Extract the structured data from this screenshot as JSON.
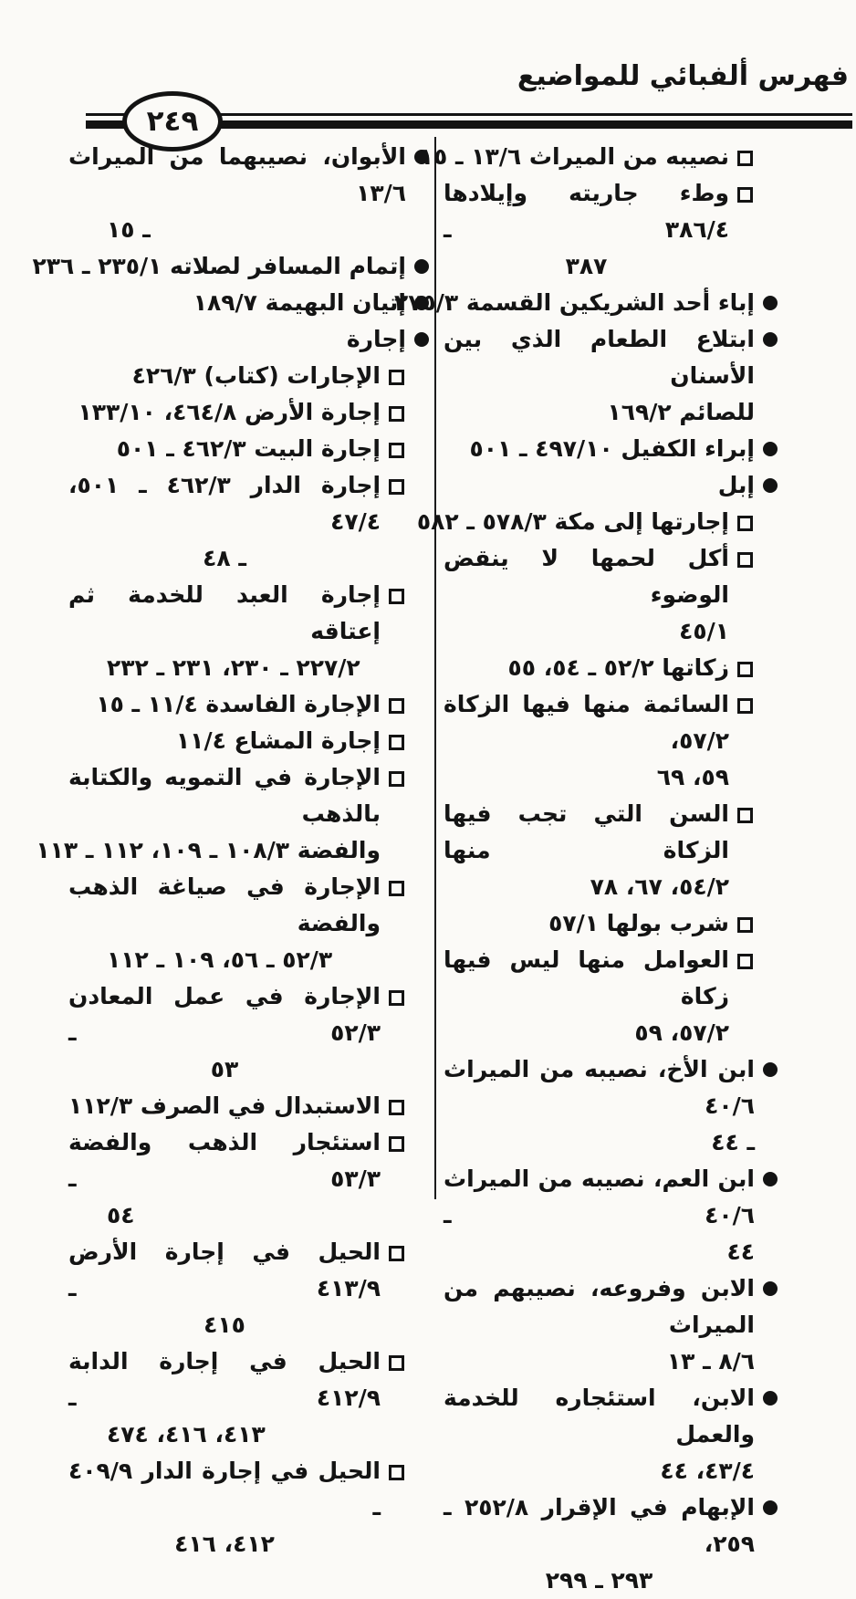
{
  "header": {
    "title": "فهرس ألفبائي للمواضيع",
    "page_number": "٢٤٩"
  },
  "colors": {
    "ink": "#131313",
    "paper": "#fbfaf7"
  },
  "markers": {
    "main": "circle-bullet-icon",
    "sub": "square-bullet-icon"
  },
  "index": {
    "right_column": {
      "entries": [
        {
          "marker": "square",
          "lines": [
            {
              "text": "نصيبه من الميراث ١٣/٦ ـ ١٥"
            }
          ]
        },
        {
          "marker": "square",
          "lines": [
            {
              "text": "وطء جاريته وإيلادها ٣٨٦/٤ ـ",
              "justify": true
            },
            {
              "text": "٣٨٧",
              "align": "center"
            }
          ]
        },
        {
          "marker": "circle",
          "lines": [
            {
              "text": "إباء أحد الشريكين القسمة ٢٧٥/٣"
            }
          ]
        },
        {
          "marker": "circle",
          "lines": [
            {
              "text": "ابتلاع الطعام الذي بين الأسنان",
              "justify": true
            },
            {
              "text": "للصائم ١٦٩/٢",
              "align": "near"
            }
          ]
        },
        {
          "marker": "circle",
          "lines": [
            {
              "text": "إبراء الكفيل ٤٩٧/١٠ ـ ٥٠١"
            }
          ]
        },
        {
          "marker": "circle",
          "lines": [
            {
              "text": "إبل"
            }
          ]
        },
        {
          "marker": "square",
          "lines": [
            {
              "text": "إجارتها إلى مكة ٥٧٨/٣ ـ ٥٨٢"
            }
          ]
        },
        {
          "marker": "square",
          "lines": [
            {
              "text": "أكل لحمها لا ينقض الوضوء",
              "justify": true
            },
            {
              "text": "٤٥/١",
              "align": "near"
            }
          ]
        },
        {
          "marker": "square",
          "lines": [
            {
              "text": "زكاتها ٥٢/٢ ـ ٥٤، ٥٥"
            }
          ]
        },
        {
          "marker": "square",
          "lines": [
            {
              "text": "السائمة منها فيها الزكاة ٥٧/٢،",
              "justify": true
            },
            {
              "text": "٥٩، ٦٩",
              "align": "near"
            }
          ]
        },
        {
          "marker": "square",
          "lines": [
            {
              "text": "السن التي تجب فيها الزكاة منها",
              "justify": true
            },
            {
              "text": "٥٤/٢، ٦٧، ٧٨",
              "align": "near"
            }
          ]
        },
        {
          "marker": "square",
          "lines": [
            {
              "text": "شرب بولها ٥٧/١"
            }
          ]
        },
        {
          "marker": "square",
          "lines": [
            {
              "text": "العوامل منها ليس فيها زكاة",
              "justify": true
            },
            {
              "text": "٥٧/٢، ٥٩",
              "align": "near"
            }
          ]
        },
        {
          "marker": "circle",
          "lines": [
            {
              "text": "ابن الأخ، نصيبه من الميراث ٤٠/٦",
              "justify": true
            },
            {
              "text": "ـ ٤٤",
              "align": "near"
            }
          ]
        },
        {
          "marker": "circle",
          "lines": [
            {
              "text": "ابن العم، نصيبه من الميراث ٤٠/٦ ـ",
              "justify": true
            },
            {
              "text": "٤٤",
              "align": "near"
            }
          ]
        },
        {
          "marker": "circle",
          "lines": [
            {
              "text": "الابن وفروعه، نصيبهم من الميراث",
              "justify": true
            },
            {
              "text": "٨/٦ ـ ١٣",
              "align": "near"
            }
          ]
        },
        {
          "marker": "circle",
          "lines": [
            {
              "text": "الابن، استئجاره للخدمة والعمل",
              "justify": true
            },
            {
              "text": "٤٣/٤، ٤٤",
              "align": "near"
            }
          ]
        },
        {
          "marker": "circle",
          "lines": [
            {
              "text": "الإبهام في الإقرار ٢٥٢/٨ ـ ٢٥٩،",
              "justify": true
            },
            {
              "text": "٢٩٣ ـ ٢٩٩",
              "align": "center"
            }
          ]
        }
      ]
    },
    "left_column": {
      "entries": [
        {
          "marker": "circle",
          "lines": [
            {
              "text": "الأبوان، نصيبهما من الميراث ١٣/٦",
              "justify": true
            },
            {
              "text": "ـ ١٥",
              "align": "far"
            }
          ]
        },
        {
          "marker": "circle",
          "lines": [
            {
              "text": "إتمام المسافر لصلاته ٢٣٥/١ ـ ٢٣٦"
            }
          ]
        },
        {
          "marker": "circle",
          "lines": [
            {
              "text": "إتيان البهيمة ١٨٩/٧"
            }
          ]
        },
        {
          "marker": "circle",
          "lines": [
            {
              "text": "إجارة"
            }
          ]
        },
        {
          "marker": "square",
          "lines": [
            {
              "text": "الإجارات (كتاب) ٤٢٦/٣"
            }
          ]
        },
        {
          "marker": "square",
          "lines": [
            {
              "text": "إجارة الأرض ٤٦٤/٨، ١٣٣/١٠"
            }
          ]
        },
        {
          "marker": "square",
          "lines": [
            {
              "text": "إجارة البيت ٤٦٢/٣ ـ ٥٠١"
            }
          ]
        },
        {
          "marker": "square",
          "lines": [
            {
              "text": "إجارة الدار ٤٦٢/٣ ـ ٥٠١، ٤٧/٤",
              "justify": true
            },
            {
              "text": "ـ ٤٨",
              "align": "center"
            }
          ]
        },
        {
          "marker": "square",
          "lines": [
            {
              "text": "إجارة العبد للخدمة ثم إعتاقه",
              "justify": true
            },
            {
              "text": "٢٢٧/٢ ـ ٢٣٠، ٢٣١ ـ ٢٣٢",
              "align": "far"
            }
          ]
        },
        {
          "marker": "square",
          "lines": [
            {
              "text": "الإجارة الفاسدة ١١/٤ ـ ١٥"
            }
          ]
        },
        {
          "marker": "square",
          "lines": [
            {
              "text": "إجارة المشاع ١١/٤"
            }
          ]
        },
        {
          "marker": "square",
          "lines": [
            {
              "text": "الإجارة في التمويه والكتابة بالذهب",
              "justify": true
            },
            {
              "text": "والفضة ١٠٨/٣ ـ ١٠٩، ١١٢ ـ ١١٣",
              "align": "near"
            }
          ]
        },
        {
          "marker": "square",
          "lines": [
            {
              "text": "الإجارة في صياغة الذهب والفضة",
              "justify": true
            },
            {
              "text": "٥٢/٣ ـ ٥٦، ١٠٩ ـ ١١٢",
              "align": "far"
            }
          ]
        },
        {
          "marker": "square",
          "lines": [
            {
              "text": "الإجارة في عمل المعادن ٥٢/٣ ـ",
              "justify": true
            },
            {
              "text": "٥٣",
              "align": "center"
            }
          ]
        },
        {
          "marker": "square",
          "lines": [
            {
              "text": "الاستبدال في الصرف ١١٢/٣"
            }
          ]
        },
        {
          "marker": "square",
          "lines": [
            {
              "text": "استئجار الذهب والفضة ٥٣/٣ ـ",
              "justify": true
            },
            {
              "text": "٥٤",
              "align": "far"
            }
          ]
        },
        {
          "marker": "square",
          "lines": [
            {
              "text": "الحيل في إجارة الأرض ٤١٣/٩ ـ",
              "justify": true
            },
            {
              "text": "٤١٥",
              "align": "center"
            }
          ]
        },
        {
          "marker": "square",
          "lines": [
            {
              "text": "الحيل في إجارة الدابة ٤١٢/٩ ـ",
              "justify": true
            },
            {
              "text": "٤١٣، ٤١٦، ٤٧٤",
              "align": "far"
            }
          ]
        },
        {
          "marker": "square",
          "lines": [
            {
              "text": "الحيل في إجارة الدار ٤٠٩/٩ ـ",
              "justify": true
            },
            {
              "text": "٤١٢، ٤١٦",
              "align": "center"
            }
          ]
        }
      ]
    }
  }
}
